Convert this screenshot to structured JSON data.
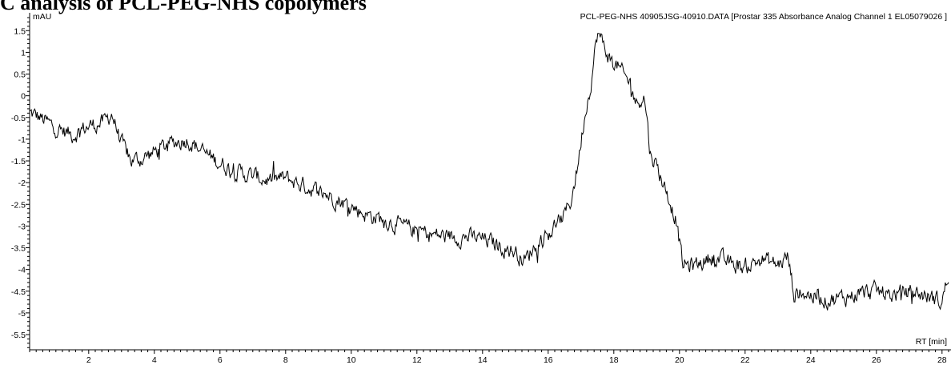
{
  "page": {
    "title": "C analysis of PCL-PEG-NHS copolymers"
  },
  "chart_data": {
    "type": "line",
    "title": "",
    "header_text": "PCL-PEG-NHS 40905JSG-40910.DATA [Prostar 335 Absorbance Analog Channel 1 EL05079026       ]",
    "xlabel": "RT [min]",
    "ylabel": "mAU",
    "xlim": [
      0.2,
      28.2
    ],
    "ylim": [
      -5.85,
      1.8
    ],
    "x_ticks": [
      2,
      4,
      6,
      8,
      10,
      12,
      14,
      16,
      18,
      20,
      22,
      24,
      26,
      28
    ],
    "y_ticks": [
      1.5,
      1,
      0.5,
      0,
      -0.5,
      -1,
      -1.5,
      -2,
      -2.5,
      -3,
      -3.5,
      -4,
      -4.5,
      -5,
      -5.5
    ],
    "y_tick_labels": [
      "1.5",
      "1",
      "0.5",
      "0",
      "-0.5",
      "-1",
      "-1.5",
      "-2",
      "-2.5",
      "-3",
      "-3.5",
      "-4",
      "-4.5",
      "-5",
      "-5.5"
    ],
    "grid": false,
    "line_color": "#000000",
    "noise_amplitude": 0.22,
    "series": [
      {
        "x": [
          0.2,
          0.5,
          1.0,
          1.5,
          2.0,
          2.5,
          2.7,
          3.0,
          3.3,
          3.6,
          4.0,
          4.5,
          5.0,
          5.5,
          6.0,
          6.5,
          7.0,
          7.5,
          8.0,
          8.5,
          9.0,
          9.5,
          10.0,
          10.5,
          11.0,
          11.5,
          12.0,
          12.5,
          13.0,
          13.5,
          14.0,
          14.5,
          15.0,
          15.3,
          15.5,
          15.8,
          16.0,
          16.3,
          16.5,
          16.7,
          16.9,
          17.1,
          17.3,
          17.5,
          17.7,
          17.9,
          18.1,
          18.3,
          18.5,
          18.7,
          18.9,
          19.0,
          19.1,
          19.3,
          19.5,
          19.7,
          19.9,
          20.1,
          20.5,
          21.0,
          21.5,
          22.0,
          22.5,
          23.0,
          23.3,
          23.5,
          23.7,
          24.0,
          24.5,
          25.0,
          25.5,
          26.0,
          26.5,
          27.0,
          27.5,
          28.0,
          28.2
        ],
        "y": [
          -0.4,
          -0.5,
          -0.75,
          -0.9,
          -0.7,
          -0.6,
          -0.4,
          -1.1,
          -1.5,
          -1.45,
          -1.3,
          -1.1,
          -1.0,
          -1.3,
          -1.55,
          -1.75,
          -1.85,
          -1.95,
          -1.9,
          -2.05,
          -2.2,
          -2.35,
          -2.55,
          -2.75,
          -2.85,
          -3.0,
          -3.1,
          -3.2,
          -3.25,
          -3.25,
          -3.3,
          -3.45,
          -3.6,
          -3.8,
          -3.55,
          -3.3,
          -3.2,
          -2.9,
          -2.75,
          -2.4,
          -1.6,
          -0.5,
          0.3,
          1.45,
          1.15,
          0.8,
          0.7,
          0.45,
          0.3,
          -0.2,
          0.05,
          -0.4,
          -1.3,
          -1.6,
          -2.0,
          -2.4,
          -2.85,
          -3.9,
          -3.9,
          -3.7,
          -3.85,
          -3.95,
          -3.75,
          -3.9,
          -3.7,
          -4.6,
          -4.5,
          -4.6,
          -4.7,
          -4.65,
          -4.55,
          -4.5,
          -4.6,
          -4.5,
          -4.6,
          -4.75,
          -4.1
        ]
      }
    ]
  }
}
